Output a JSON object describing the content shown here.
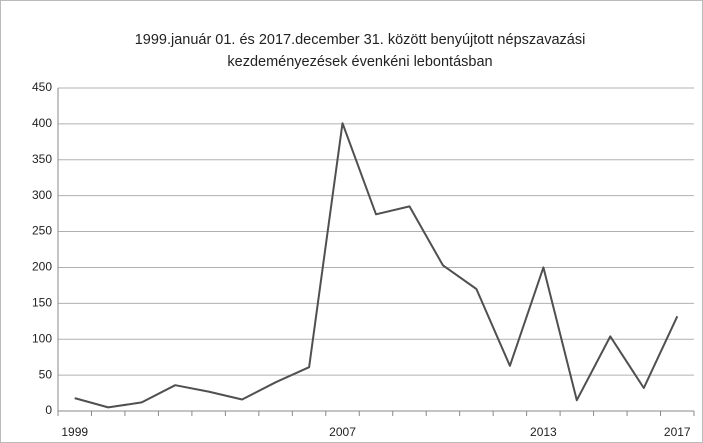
{
  "chart_data": {
    "type": "line",
    "title": [
      "1999.január 01. és 2017.december 31. között benyújtott népszavazási",
      "kezdeményezések évenkéni lebontásban"
    ],
    "categories": [
      "1999",
      null,
      null,
      null,
      null,
      null,
      null,
      null,
      "2007",
      null,
      null,
      null,
      null,
      null,
      "2013",
      null,
      null,
      null,
      "2017"
    ],
    "values": [
      18,
      5,
      12,
      36,
      27,
      16,
      40,
      61,
      401,
      274,
      285,
      203,
      170,
      63,
      200,
      15,
      104,
      32,
      132
    ],
    "color": "#505050",
    "ylim": [
      0,
      450
    ],
    "yticks": [
      0,
      50,
      100,
      150,
      200,
      250,
      300,
      350,
      400,
      450
    ],
    "grid": true
  }
}
